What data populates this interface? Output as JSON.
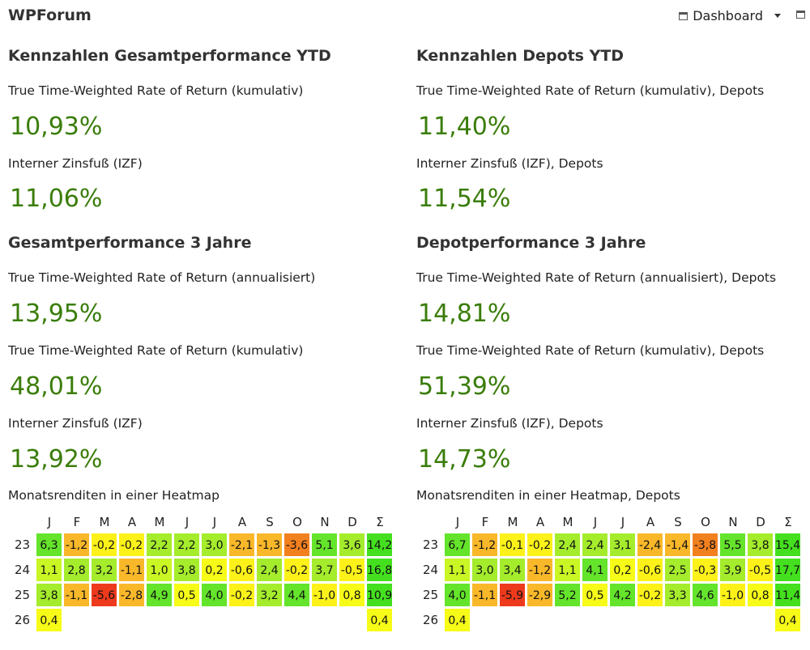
{
  "header": {
    "title": "WPForum",
    "dashboard_label": "Dashboard"
  },
  "left": {
    "section1_title": "Kennzahlen Gesamtperformance YTD",
    "ttwr_kum_label": "True Time-Weighted Rate of Return (kumulativ)",
    "ttwr_kum_value": "10,93%",
    "izf_label": "Interner Zinsfuß (IZF)",
    "izf_value": "11,06%",
    "section2_title": "Gesamtperformance 3 Jahre",
    "ttwr3_ann_label": "True Time-Weighted Rate of Return (annualisiert)",
    "ttwr3_ann_value": "13,95%",
    "ttwr3_kum_label": "True Time-Weighted Rate of Return (kumulativ)",
    "ttwr3_kum_value": "48,01%",
    "izf3_label": "Interner Zinsfuß (IZF)",
    "izf3_value": "13,92%",
    "heatmap_title": "Monatsrenditen in einer Heatmap"
  },
  "right": {
    "section1_title": "Kennzahlen Depots YTD",
    "ttwr_kum_label": "True Time-Weighted Rate of Return (kumulativ), Depots",
    "ttwr_kum_value": "11,40%",
    "izf_label": "Interner Zinsfuß (IZF), Depots",
    "izf_value": "11,54%",
    "section2_title": "Depotperformance  3 Jahre",
    "ttwr3_ann_label": "True Time-Weighted Rate of Return (annualisiert), Depots",
    "ttwr3_ann_value": "14,81%",
    "ttwr3_kum_label": "True Time-Weighted Rate of Return (kumulativ), Depots",
    "ttwr3_kum_value": "51,39%",
    "izf3_label": "Interner Zinsfuß (IZF), Depots",
    "izf3_value": "14,73%",
    "heatmap_title": "Monatsrenditen in einer Heatmap, Depots"
  },
  "heatmaps": {
    "months": [
      "J",
      "F",
      "M",
      "A",
      "M",
      "J",
      "J",
      "A",
      "S",
      "O",
      "N",
      "D",
      "Σ"
    ],
    "left": [
      {
        "year": "23",
        "values": [
          "6,3",
          "-1,2",
          "-0,2",
          "-0,2",
          "2,2",
          "2,2",
          "3,0",
          "-2,1",
          "-1,3",
          "-3,6",
          "5,1",
          "3,6",
          "14,2"
        ]
      },
      {
        "year": "24",
        "values": [
          "1,1",
          "2,8",
          "3,2",
          "-1,1",
          "1,0",
          "3,8",
          "0,2",
          "-0,6",
          "2,4",
          "-0,2",
          "3,7",
          "-0,5",
          "16,8"
        ]
      },
      {
        "year": "25",
        "values": [
          "3,8",
          "-1,1",
          "-5,6",
          "-2,8",
          "4,9",
          "0,5",
          "4,0",
          "-0,2",
          "3,2",
          "4,4",
          "-1,0",
          "0,8",
          "10,9"
        ]
      },
      {
        "year": "26",
        "values": [
          "0,4",
          "",
          "",
          "",
          "",
          "",
          "",
          "",
          "",
          "",
          "",
          "",
          "0,4"
        ]
      }
    ],
    "right": [
      {
        "year": "23",
        "values": [
          "6,7",
          "-1,2",
          "-0,1",
          "-0,2",
          "2,4",
          "2,4",
          "3,1",
          "-2,4",
          "-1,4",
          "-3,8",
          "5,5",
          "3,8",
          "15,4"
        ]
      },
      {
        "year": "24",
        "values": [
          "1,1",
          "3,0",
          "3,4",
          "-1,2",
          "1,1",
          "4,1",
          "0,2",
          "-0,6",
          "2,5",
          "-0,3",
          "3,9",
          "-0,5",
          "17,7"
        ]
      },
      {
        "year": "25",
        "values": [
          "4,0",
          "-1,1",
          "-5,9",
          "-2,9",
          "5,2",
          "0,5",
          "4,2",
          "-0,2",
          "3,3",
          "4,6",
          "-1,0",
          "0,8",
          "11,4"
        ]
      },
      {
        "year": "26",
        "values": [
          "0,4",
          "",
          "",
          "",
          "",
          "",
          "",
          "",
          "",
          "",
          "",
          "",
          "0,4"
        ]
      }
    ]
  }
}
